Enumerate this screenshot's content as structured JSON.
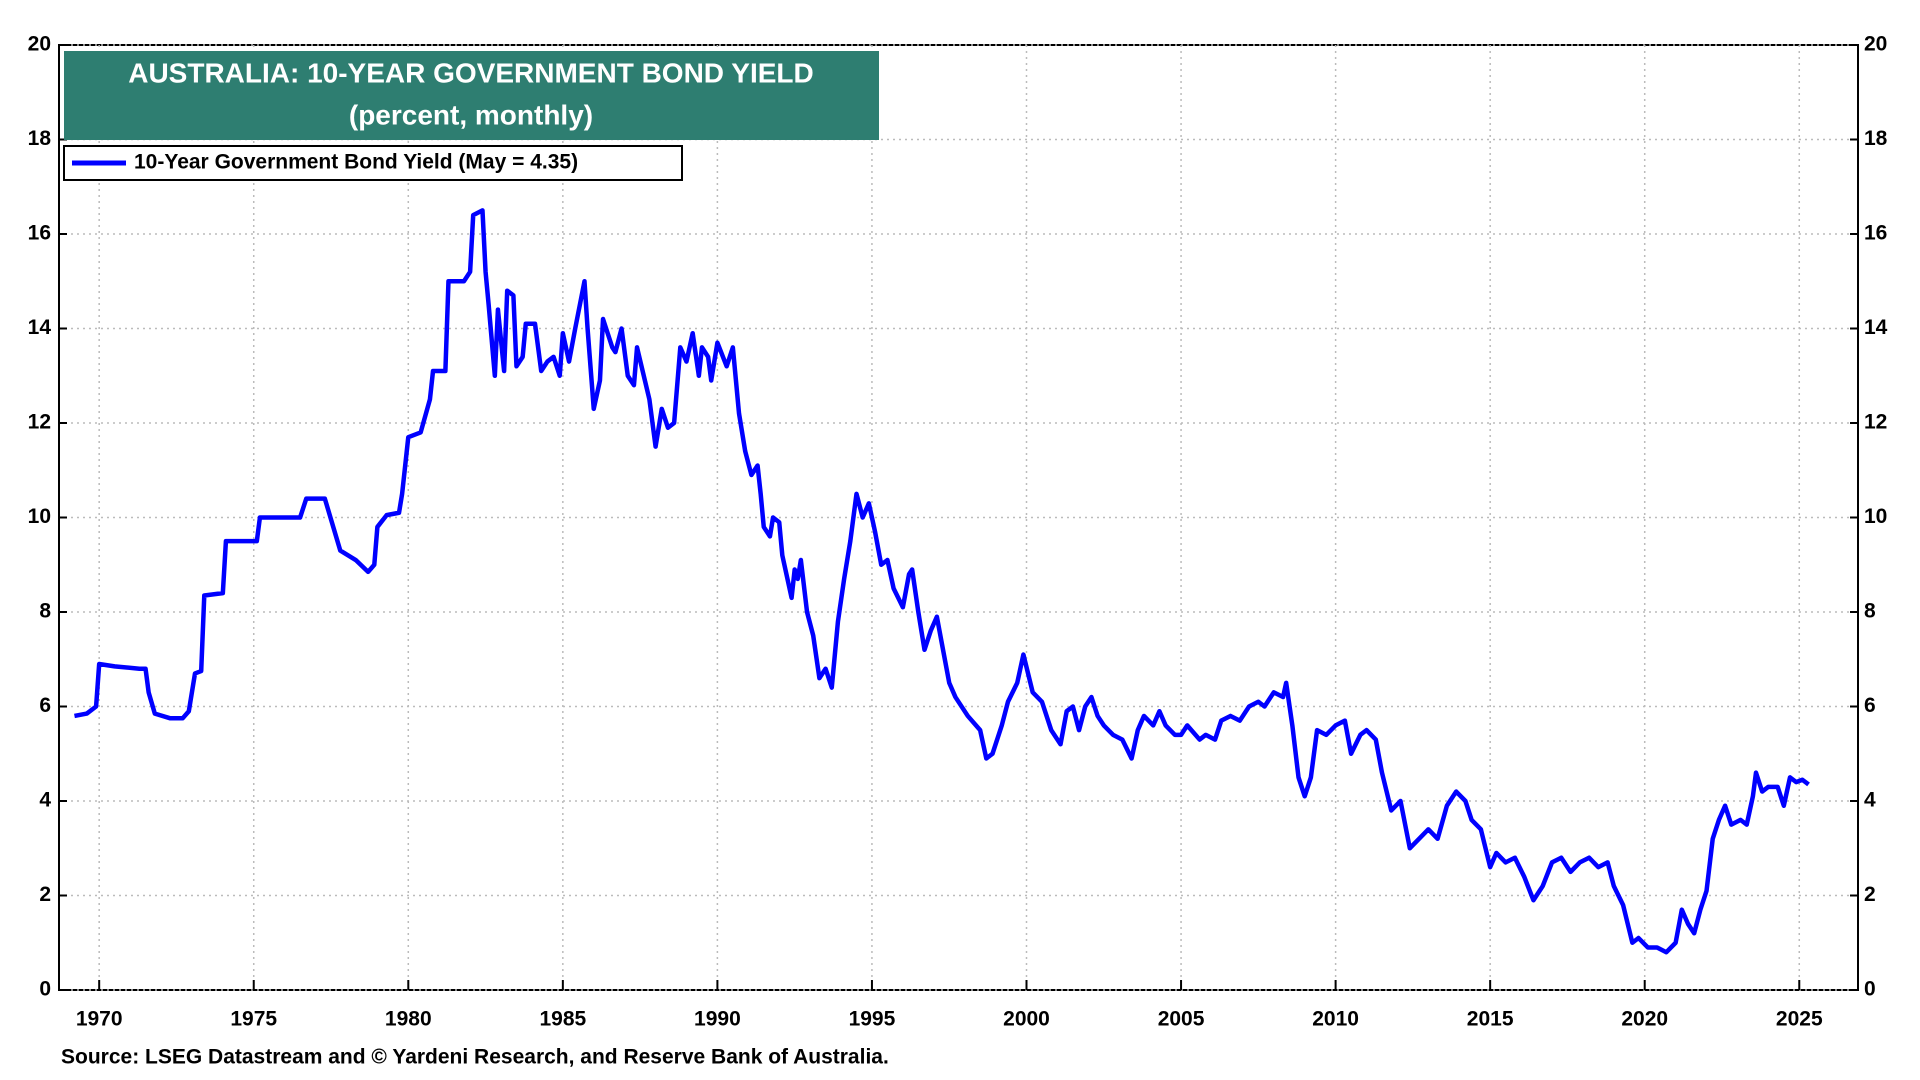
{
  "chart_data": {
    "type": "line",
    "title": "AUSTRALIA: 10-YEAR GOVERNMENT BOND YIELD",
    "subtitle": "(percent, monthly)",
    "source": "Source: LSEG Datastream and © Yardeni Research, and Reserve Bank of Australia.",
    "xlim": [
      1968.7,
      2026.9
    ],
    "xticks": [
      1970,
      1975,
      1980,
      1985,
      1990,
      1995,
      2000,
      2005,
      2010,
      2015,
      2020,
      2025
    ],
    "ylim": [
      0,
      20
    ],
    "yticks": [
      0,
      2,
      4,
      6,
      8,
      10,
      12,
      14,
      16,
      18,
      20
    ],
    "y2lim": [
      0,
      20
    ],
    "y2ticks": [
      0,
      2,
      4,
      6,
      8,
      10,
      12,
      14,
      16,
      18,
      20
    ],
    "grid": true,
    "legend": "top-left",
    "x": [
      1969.2,
      1969.6,
      1969.9,
      1970.0,
      1970.5,
      1971.3,
      1971.5,
      1971.6,
      1971.8,
      1972.3,
      1972.7,
      1972.9,
      1973.1,
      1973.3,
      1973.4,
      1974.0,
      1974.1,
      1974.7,
      1975.1,
      1975.2,
      1976.5,
      1976.7,
      1977.3,
      1977.8,
      1978.3,
      1978.7,
      1978.9,
      1979.0,
      1979.3,
      1979.7,
      1979.8,
      1980.0,
      1980.4,
      1980.7,
      1980.8,
      1981.2,
      1981.3,
      1981.8,
      1982.0,
      1982.1,
      1982.4,
      1982.5,
      1982.6,
      1982.8,
      1982.9,
      1983.1,
      1983.2,
      1983.4,
      1983.5,
      1983.7,
      1983.8,
      1984.1,
      1984.3,
      1984.5,
      1984.7,
      1984.9,
      1985.0,
      1985.2,
      1985.4,
      1985.7,
      1985.8,
      1986.0,
      1986.2,
      1986.3,
      1986.6,
      1986.7,
      1986.9,
      1987.1,
      1987.3,
      1987.4,
      1987.8,
      1988.0,
      1988.2,
      1988.4,
      1988.6,
      1988.8,
      1989.0,
      1989.2,
      1989.4,
      1989.5,
      1989.7,
      1989.8,
      1990.0,
      1990.3,
      1990.5,
      1990.7,
      1990.9,
      1991.1,
      1991.3,
      1991.4,
      1991.5,
      1991.7,
      1991.8,
      1992.0,
      1992.1,
      1992.4,
      1992.5,
      1992.6,
      1992.7,
      1992.9,
      1993.1,
      1993.3,
      1993.5,
      1993.7,
      1993.9,
      1994.1,
      1994.3,
      1994.5,
      1994.7,
      1994.9,
      1995.1,
      1995.3,
      1995.5,
      1995.7,
      1996.0,
      1996.2,
      1996.3,
      1996.5,
      1996.7,
      1996.9,
      1997.1,
      1997.3,
      1997.5,
      1997.7,
      1998.1,
      1998.5,
      1998.7,
      1998.9,
      1999.2,
      1999.4,
      1999.7,
      1999.9,
      2000.2,
      2000.5,
      2000.8,
      2001.1,
      2001.3,
      2001.5,
      2001.7,
      2001.9,
      2002.1,
      2002.3,
      2002.5,
      2002.8,
      2003.1,
      2003.4,
      2003.6,
      2003.8,
      2004.1,
      2004.3,
      2004.5,
      2004.8,
      2005.0,
      2005.2,
      2005.6,
      2005.8,
      2006.1,
      2006.3,
      2006.6,
      2006.9,
      2007.2,
      2007.5,
      2007.7,
      2008.0,
      2008.3,
      2008.4,
      2008.6,
      2008.8,
      2009.0,
      2009.2,
      2009.4,
      2009.7,
      2010.0,
      2010.3,
      2010.5,
      2010.8,
      2011.0,
      2011.3,
      2011.5,
      2011.8,
      2012.1,
      2012.4,
      2012.7,
      2013.0,
      2013.3,
      2013.6,
      2013.9,
      2014.2,
      2014.4,
      2014.7,
      2015.0,
      2015.2,
      2015.5,
      2015.8,
      2016.1,
      2016.4,
      2016.7,
      2017.0,
      2017.3,
      2017.6,
      2017.9,
      2018.2,
      2018.5,
      2018.8,
      2019.0,
      2019.3,
      2019.6,
      2019.8,
      2020.1,
      2020.4,
      2020.7,
      2021.0,
      2021.2,
      2021.4,
      2021.6,
      2021.8,
      2022.0,
      2022.2,
      2022.4,
      2022.6,
      2022.8,
      2023.1,
      2023.3,
      2023.5,
      2023.6,
      2023.8,
      2024.0,
      2024.3,
      2024.5,
      2024.7,
      2024.9,
      2025.1,
      2025.3
    ],
    "series": [
      {
        "name": "10-Year Government Bond Yield (May = 4.35)",
        "color": "#0000ff",
        "values": [
          5.8,
          5.85,
          6.0,
          6.9,
          6.85,
          6.8,
          6.8,
          6.3,
          5.85,
          5.75,
          5.75,
          5.9,
          6.7,
          6.75,
          8.35,
          8.4,
          9.5,
          9.5,
          9.5,
          10.0,
          10.0,
          10.4,
          10.4,
          9.3,
          9.1,
          8.85,
          9.0,
          9.8,
          10.05,
          10.1,
          10.5,
          11.7,
          11.8,
          12.5,
          13.1,
          13.1,
          15.0,
          15.0,
          15.2,
          16.4,
          16.5,
          15.2,
          14.5,
          13.0,
          14.4,
          13.1,
          14.8,
          14.7,
          13.2,
          13.4,
          14.1,
          14.1,
          13.1,
          13.3,
          13.4,
          13.0,
          13.9,
          13.3,
          14.0,
          15.0,
          14.0,
          12.3,
          12.9,
          14.2,
          13.6,
          13.5,
          14.0,
          13.0,
          12.8,
          13.6,
          12.5,
          11.5,
          12.3,
          11.9,
          12.0,
          13.6,
          13.3,
          13.9,
          13.0,
          13.6,
          13.4,
          12.9,
          13.7,
          13.2,
          13.6,
          12.2,
          11.4,
          10.9,
          11.1,
          10.5,
          9.8,
          9.6,
          10.0,
          9.9,
          9.2,
          8.3,
          8.9,
          8.7,
          9.1,
          8.0,
          7.5,
          6.6,
          6.8,
          6.4,
          7.8,
          8.7,
          9.5,
          10.5,
          10.0,
          10.3,
          9.7,
          9.0,
          9.1,
          8.5,
          8.1,
          8.8,
          8.9,
          8.0,
          7.2,
          7.6,
          7.9,
          7.2,
          6.5,
          6.2,
          5.8,
          5.5,
          4.9,
          5.0,
          5.6,
          6.1,
          6.5,
          7.1,
          6.3,
          6.1,
          5.5,
          5.2,
          5.9,
          6.0,
          5.5,
          6.0,
          6.2,
          5.8,
          5.6,
          5.4,
          5.3,
          4.9,
          5.5,
          5.8,
          5.6,
          5.9,
          5.6,
          5.4,
          5.4,
          5.6,
          5.3,
          5.4,
          5.3,
          5.7,
          5.8,
          5.7,
          6.0,
          6.1,
          6.0,
          6.3,
          6.2,
          6.5,
          5.6,
          4.5,
          4.1,
          4.5,
          5.5,
          5.4,
          5.6,
          5.7,
          5.0,
          5.4,
          5.5,
          5.3,
          4.6,
          3.8,
          4.0,
          3.0,
          3.2,
          3.4,
          3.2,
          3.9,
          4.2,
          4.0,
          3.6,
          3.4,
          2.6,
          2.9,
          2.7,
          2.8,
          2.4,
          1.9,
          2.2,
          2.7,
          2.8,
          2.5,
          2.7,
          2.8,
          2.6,
          2.7,
          2.2,
          1.8,
          1.0,
          1.1,
          0.9,
          0.9,
          0.8,
          1.0,
          1.7,
          1.4,
          1.2,
          1.7,
          2.1,
          3.2,
          3.6,
          3.9,
          3.5,
          3.6,
          3.5,
          4.1,
          4.6,
          4.2,
          4.3,
          4.3,
          3.9,
          4.5,
          4.4,
          4.45,
          4.35
        ]
      }
    ]
  }
}
